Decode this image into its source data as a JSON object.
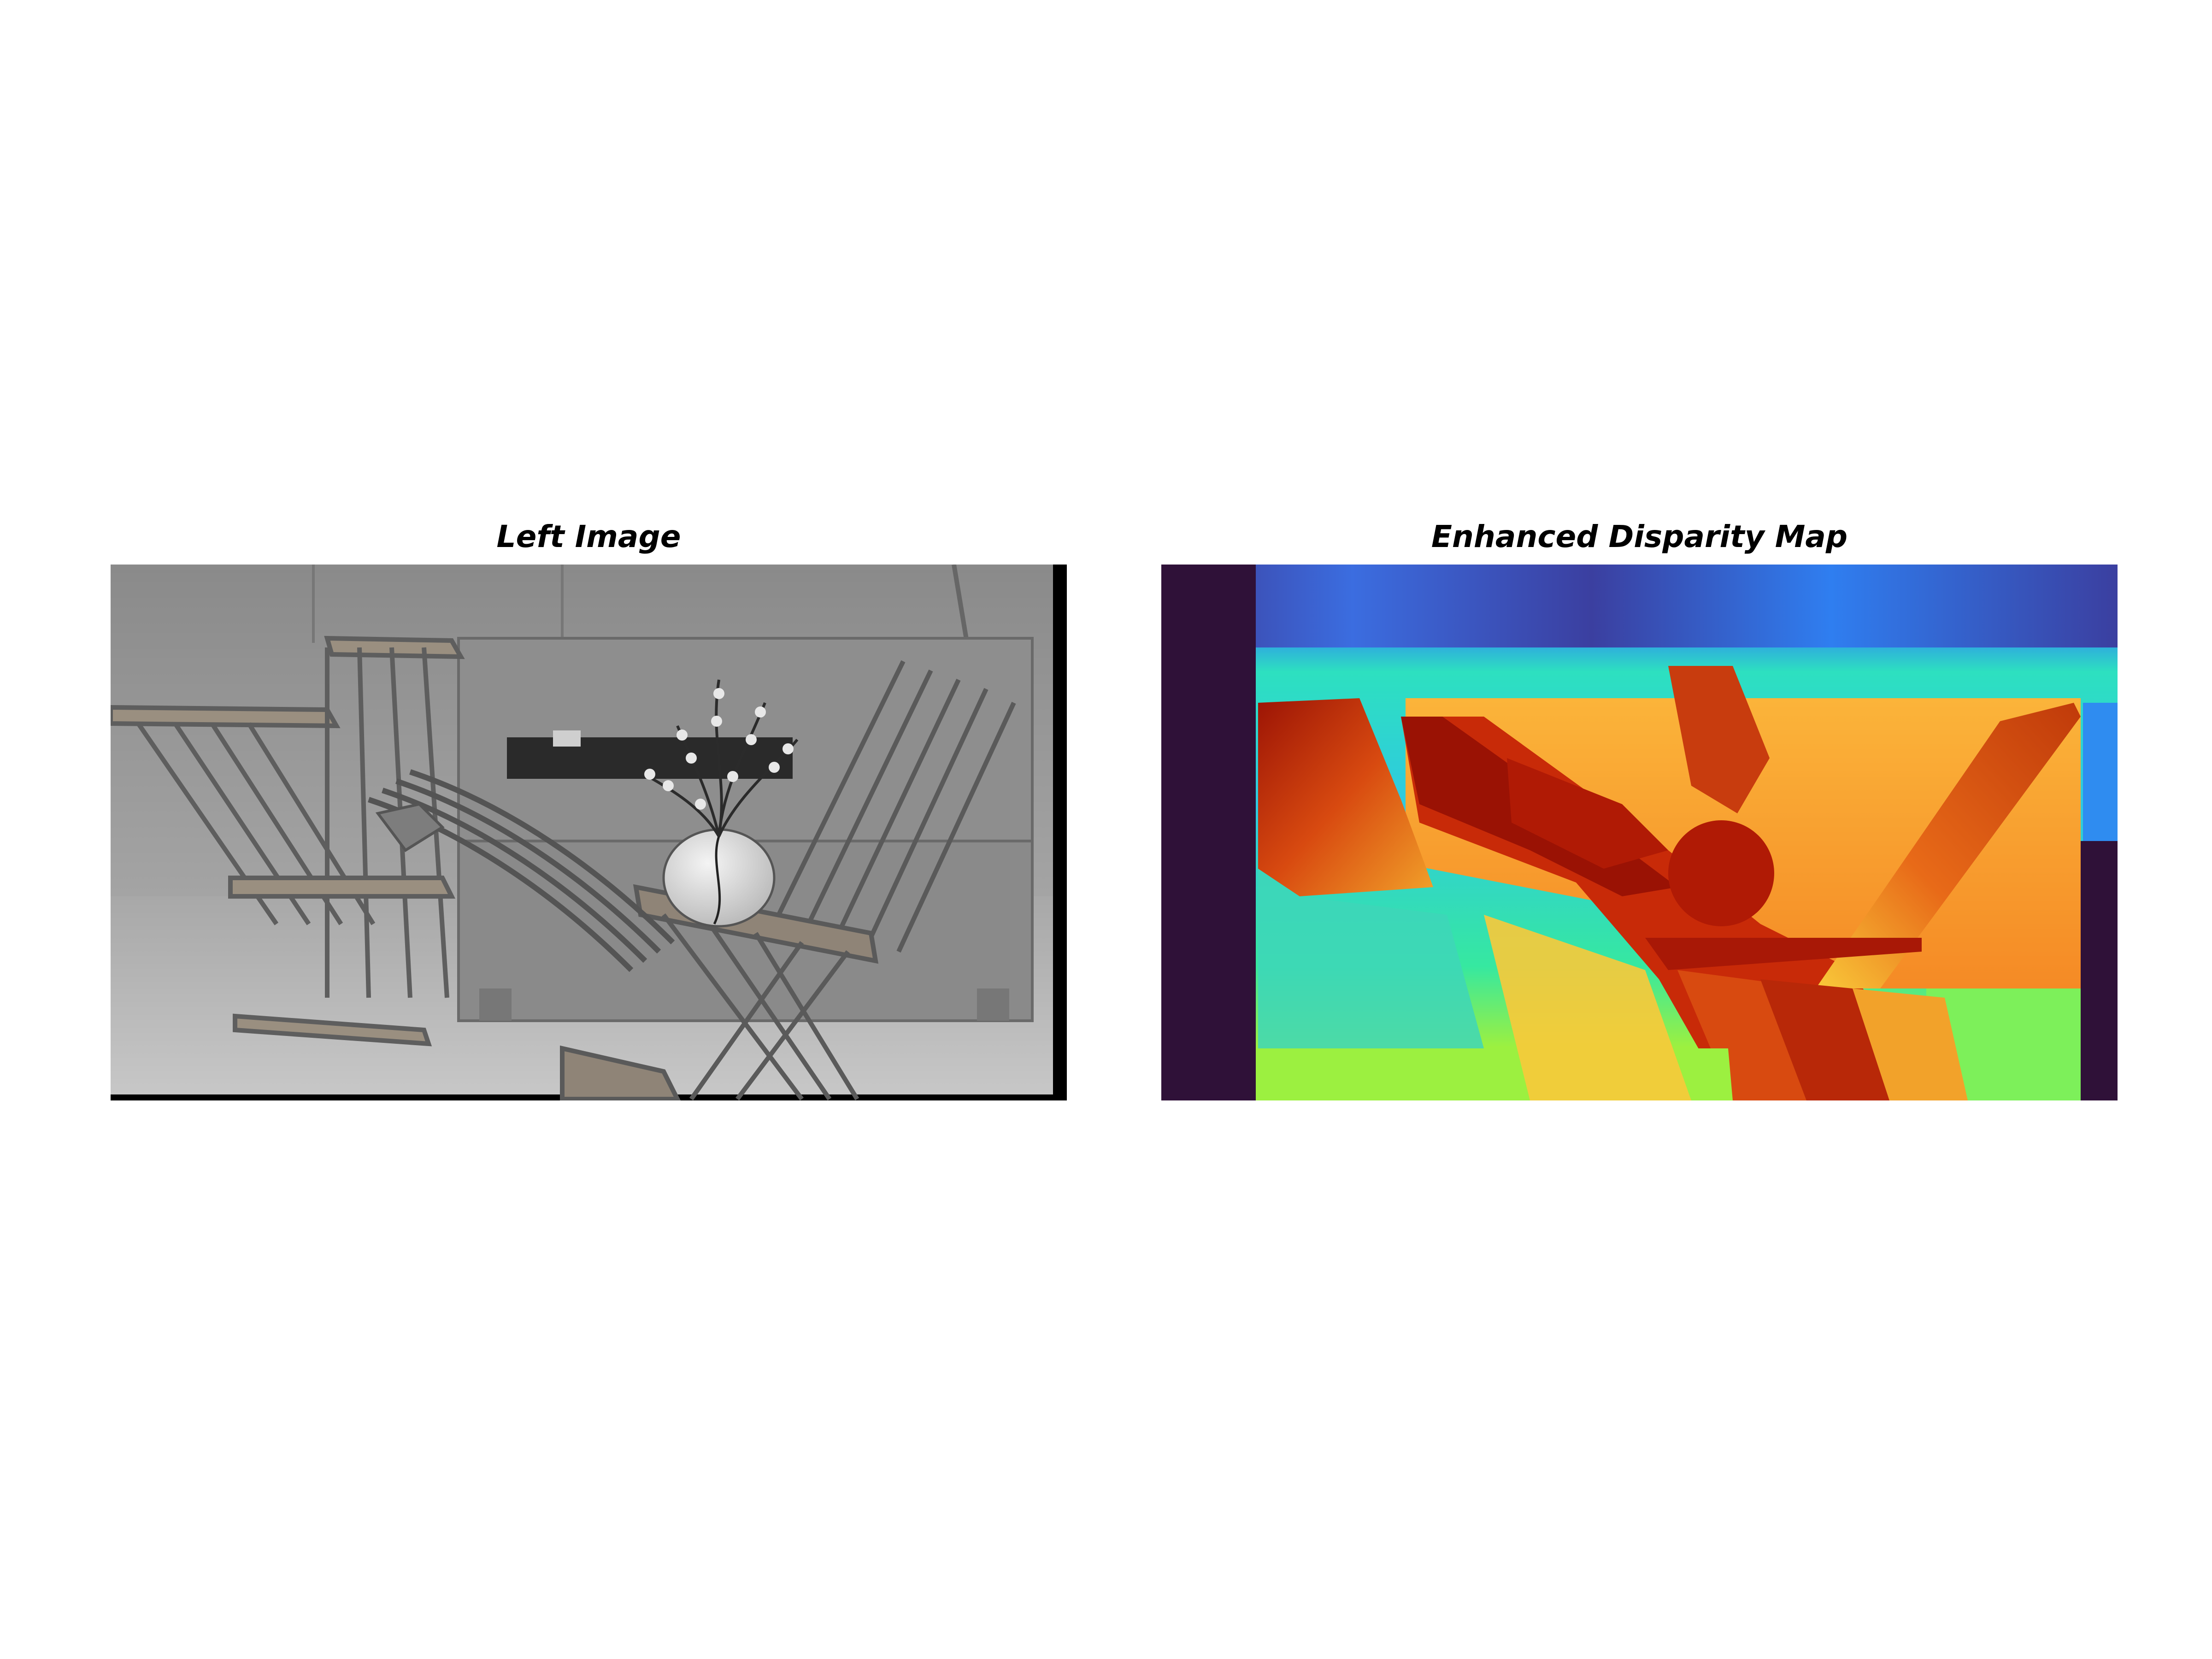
{
  "figure": {
    "left_title": "Left Image",
    "right_title": "Enhanced Disparity Map"
  },
  "left_image": {
    "kind": "grayscale stereo photograph",
    "icon": "photo-icon"
  },
  "disparity_map": {
    "kind": "disparity heatmap",
    "colormap": "turbo",
    "colors": {
      "invalid": "#2f1138",
      "far": "#3b3fa0",
      "mid_far": "#2f8cf0",
      "mid": "#2de0b0",
      "mid_near": "#9cf040",
      "near": "#f2a22a",
      "nearest": "#b01a05"
    }
  }
}
